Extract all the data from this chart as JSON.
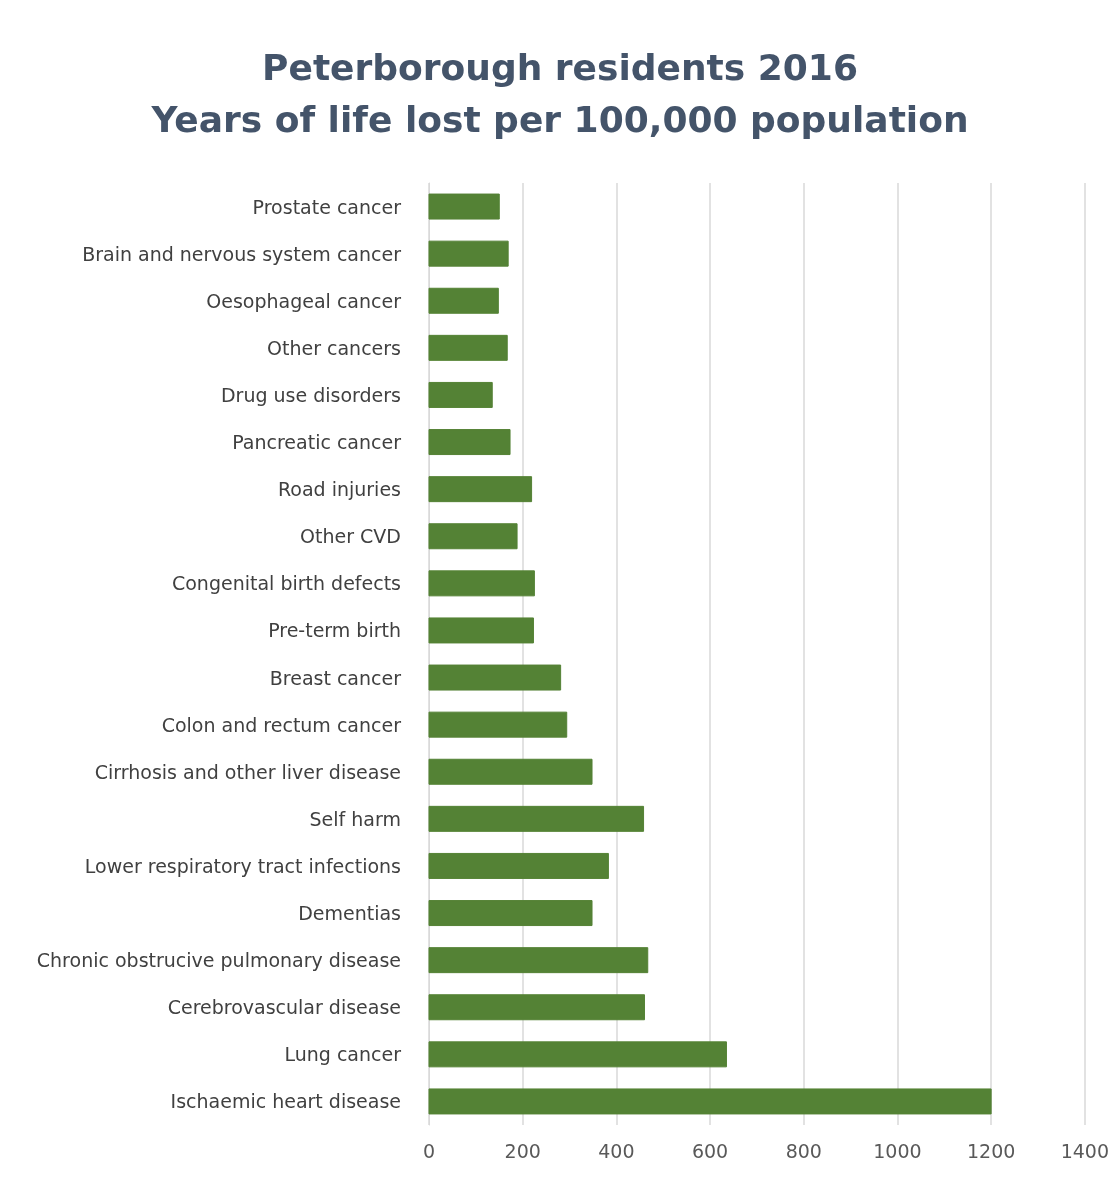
{
  "chart_data": {
    "type": "bar",
    "orientation": "horizontal",
    "title": "Peterborough residents 2016\nYears of life lost per 100,000 population",
    "categories": [
      "Prostate cancer",
      "Brain and nervous system cancer",
      "Oesophageal cancer",
      "Other cancers",
      "Drug use disorders",
      "Pancreatic cancer",
      "Road injuries",
      "Other CVD",
      "Congenital birth defects",
      "Pre-term birth",
      "Breast cancer",
      "Colon and rectum cancer",
      "Cirrhosis and other liver disease",
      "Self harm",
      "Lower respiratory tract infections",
      "Dementias",
      "Chronic obstrucive pulmonary disease",
      "Cerebrovascular disease",
      "Lung cancer",
      "Ischaemic heart disease"
    ],
    "values": [
      150,
      169,
      148,
      167,
      135,
      173,
      219,
      188,
      225,
      223,
      281,
      294,
      348,
      458,
      383,
      348,
      467,
      460,
      635,
      1200
    ],
    "color": "#548235",
    "xlim": [
      0,
      1400
    ],
    "xticks": [
      0,
      200,
      400,
      600,
      800,
      1000,
      1200,
      1400
    ],
    "grid": "x"
  }
}
